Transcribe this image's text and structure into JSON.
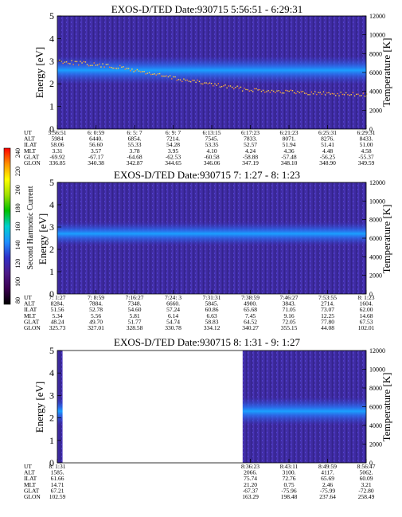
{
  "colorbar": {
    "label": "Second Harmonic Current",
    "ticks": [
      "80",
      "100",
      "120",
      "140",
      "160",
      "180",
      "200",
      "220",
      "240"
    ],
    "colors": [
      "#000000",
      "#3a0050",
      "#4d1a88",
      "#3030c8",
      "#1e90ff",
      "#00d0d0",
      "#00c000",
      "#a0e000",
      "#ffff00",
      "#ff9000",
      "#ff0000"
    ]
  },
  "chart_data": [
    {
      "type": "heatmap",
      "title": "EXOS-D/TED   Date:930715  5:56:51 - 6:29:31",
      "ylabel": "Energy [eV]",
      "y2label": "Temperature [K]",
      "ylim": [
        0,
        5
      ],
      "y2lim": [
        0,
        12000
      ],
      "yticks": [
        "0",
        "1",
        "2",
        "3",
        "4",
        "5"
      ],
      "y2ticks": [
        "0",
        "2000",
        "4000",
        "6000",
        "8000",
        "10000",
        "12000"
      ],
      "data_gaps": [],
      "band": {
        "energy_center": 2.6,
        "energy_half_width": 0.35
      },
      "temperature_trace": {
        "t": [
          0,
          0.2,
          0.4,
          0.6,
          0.8,
          1.0
        ],
        "K": [
          7300,
          6600,
          5300,
          4300,
          3900,
          3700
        ]
      },
      "table": {
        "row_labels": [
          "UT",
          "ALT",
          "ILAT",
          "MLT",
          "GLAT",
          "GLON"
        ],
        "columns": [
          [
            "5:56:51",
            "5984",
            "58.06",
            "3.31",
            "-69.92",
            "336.85"
          ],
          [
            "6: 0:59",
            "6440.",
            "56.60",
            "3.57",
            "-67.17",
            "340.38"
          ],
          [
            "6: 5: 7",
            "6854.",
            "55.33",
            "3.78",
            "-64.68",
            "342.87"
          ],
          [
            "6: 9: 7",
            "7214.",
            "54.28",
            "3.95",
            "-62.53",
            "344.65"
          ],
          [
            "6:13:15",
            "7545.",
            "53.35",
            "4.10",
            "-60.58",
            "346.06"
          ],
          [
            "6:17:23",
            "7833.",
            "52.57",
            "4.24",
            "-58.88",
            "347.19"
          ],
          [
            "6:21:23",
            "8071.",
            "51.94",
            "4.36",
            "-57.48",
            "348.10"
          ],
          [
            "6:25:31",
            "8276.",
            "51.41",
            "4.48",
            "-56.25",
            "348.90"
          ],
          [
            "6:29:31",
            "8433.",
            "51.00",
            "4.58",
            "-55.37",
            "349.59"
          ]
        ]
      }
    },
    {
      "type": "heatmap",
      "title": "EXOS-D/TED   Date:930715  7: 1:27 - 8: 1:23",
      "ylabel": "Energy [eV]",
      "y2label": "Temperature [K]",
      "ylim": [
        0,
        5
      ],
      "y2lim": [
        0,
        12000
      ],
      "yticks": [
        "0",
        "1",
        "2",
        "3",
        "4",
        "5"
      ],
      "y2ticks": [
        "0",
        "2000",
        "4000",
        "6000",
        "8000",
        "10000",
        "12000"
      ],
      "data_gaps": [],
      "band": {
        "energy_center": 2.7,
        "energy_half_width": 0.3
      },
      "table": {
        "row_labels": [
          "UT",
          "ALT",
          "ILAT",
          "MLT",
          "GLAT",
          "GLON"
        ],
        "columns": [
          [
            "7: 1:27",
            "8284.",
            "51.56",
            "5.34",
            "48.24",
            "325.73"
          ],
          [
            "7: 8:59",
            "7884.",
            "52.78",
            "5.56",
            "49.70",
            "327.01"
          ],
          [
            "7:16:27",
            "7348.",
            "54.60",
            "5.81",
            "51.77",
            "328.58"
          ],
          [
            "7:24: 3",
            "6660.",
            "57.24",
            "6.14",
            "54.74",
            "330.78"
          ],
          [
            "7:31:31",
            "5845.",
            "60.86",
            "6.63",
            "58.83",
            "334.12"
          ],
          [
            "7:38:59",
            "4900.",
            "65.68",
            "7.45",
            "64.52",
            "340.27"
          ],
          [
            "7:46:27",
            "3843.",
            "71.05",
            "9.16",
            "72.05",
            "355.15"
          ],
          [
            "7:53:55",
            "2714.",
            "73.07",
            "12.25",
            "77.80",
            "44.08"
          ],
          [
            "8: 1:23",
            "1604.",
            "62.00",
            "14.68",
            "67.53",
            "102.01"
          ]
        ]
      }
    },
    {
      "type": "heatmap",
      "title": "EXOS-D/TED   Date:930715  8: 1:31 - 9: 1:27",
      "ylabel": "Energy [eV]",
      "y2label": "Temperature [K]",
      "ylim": [
        0,
        5
      ],
      "y2lim": [
        0,
        12000
      ],
      "yticks": [
        "0",
        "1",
        "2",
        "3",
        "4",
        "5"
      ],
      "y2ticks": [
        "0",
        "2000",
        "4000",
        "6000",
        "8000",
        "10000",
        "12000"
      ],
      "data_gaps": [
        [
          0.017,
          0.6
        ]
      ],
      "band": {
        "energy_center": 2.3,
        "energy_half_width": 0.35
      },
      "table": {
        "row_labels": [
          "UT",
          "ALT",
          "ILAT",
          "MLT",
          "GLAT",
          "GLON"
        ],
        "columns": [
          [
            "8: 1:31",
            "1585.",
            "61.66",
            "14.71",
            "67.21",
            "102.59"
          ],
          [
            "",
            "",
            "",
            "",
            "",
            ""
          ],
          [
            "",
            "",
            "",
            "",
            "",
            ""
          ],
          [
            "",
            "",
            "",
            "",
            "",
            ""
          ],
          [
            "",
            "",
            "",
            "",
            "",
            ""
          ],
          [
            "8:36:23",
            "2066.",
            "75.74",
            "21.20",
            "-67.37",
            "163.29"
          ],
          [
            "8:43:11",
            "3100.",
            "72.76",
            "0.75",
            "-75.96",
            "198.48"
          ],
          [
            "8:49:59",
            "4117.",
            "65.69",
            "2.46",
            "-75.99",
            "237.64"
          ],
          [
            "8:56:47",
            "5062.",
            "60.09",
            "3.21",
            "-72.80",
            "258.49"
          ]
        ]
      }
    }
  ]
}
